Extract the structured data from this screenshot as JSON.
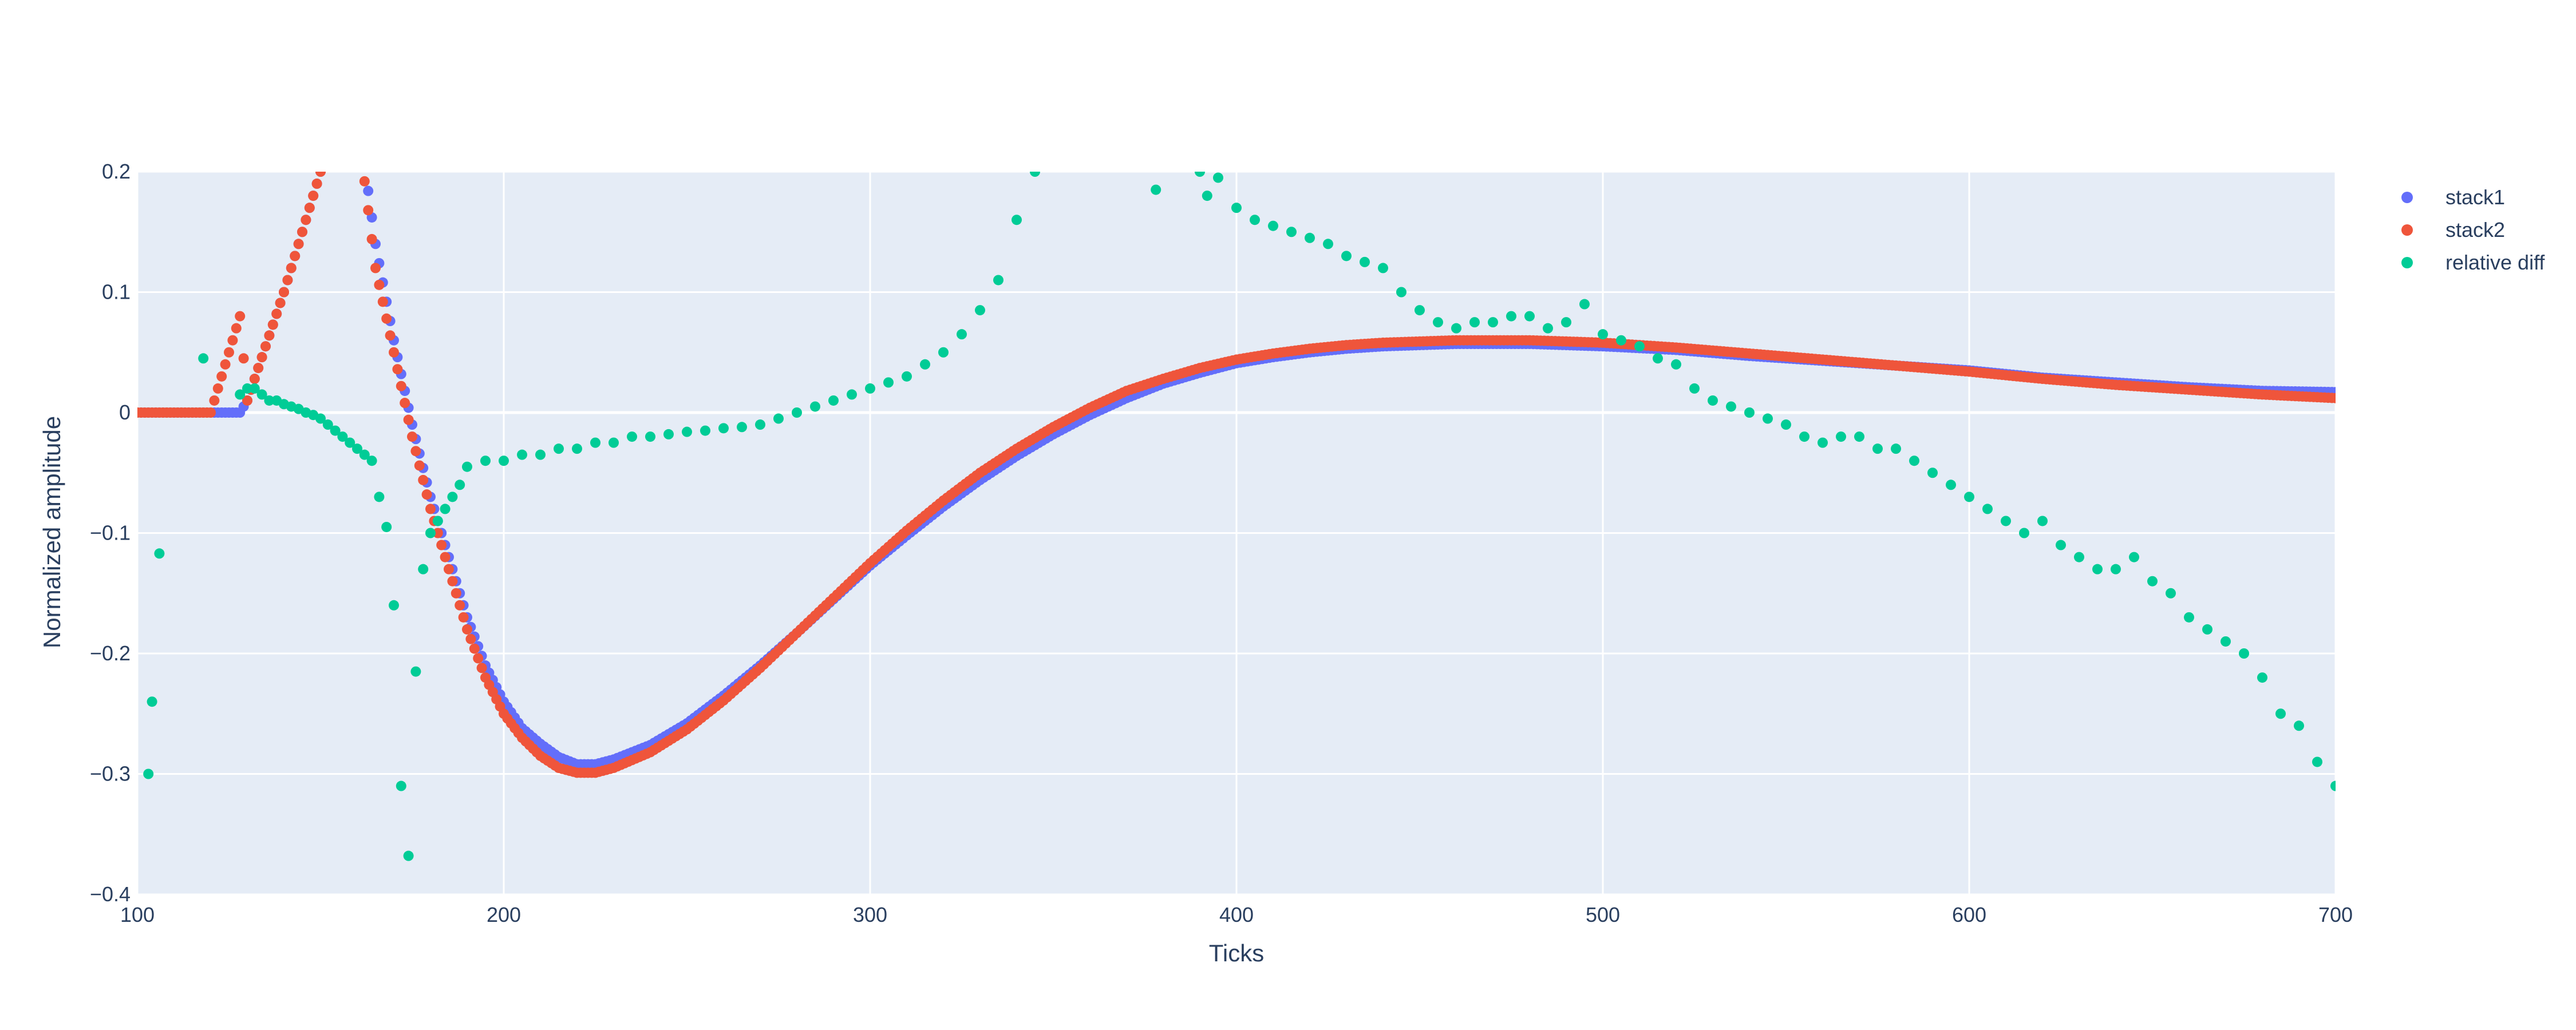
{
  "chart_data": {
    "type": "scatter",
    "title": "",
    "xlabel": "Ticks",
    "ylabel": "Normalized amplitude",
    "xlim": [
      100,
      700
    ],
    "ylim": [
      -0.4,
      0.2
    ],
    "x_ticks": [
      100,
      200,
      300,
      400,
      500,
      600,
      700
    ],
    "y_ticks": [
      -0.4,
      -0.3,
      -0.2,
      -0.1,
      0,
      0.1,
      0.2
    ],
    "x_tick_labels": [
      "100",
      "200",
      "300",
      "400",
      "500",
      "600",
      "700"
    ],
    "y_tick_labels": [
      "−0.4",
      "−0.3",
      "−0.2",
      "−0.1",
      "0",
      "0.1",
      "0.2"
    ],
    "grid": true,
    "legend_position": "top-right",
    "colors": {
      "plot_bg": "#e5ecf6",
      "grid": "#ffffff",
      "text": "#2a3f5f"
    },
    "series": [
      {
        "name": "stack1",
        "color": "#636efa",
        "x": [
          100,
          110,
          120,
          128,
          130,
          140,
          150,
          160,
          165,
          170,
          175,
          180,
          185,
          190,
          195,
          200,
          205,
          210,
          215,
          220,
          225,
          230,
          240,
          250,
          260,
          270,
          280,
          290,
          300,
          310,
          320,
          330,
          340,
          350,
          360,
          370,
          380,
          390,
          400,
          410,
          420,
          430,
          440,
          450,
          460,
          470,
          480,
          490,
          500,
          520,
          540,
          560,
          580,
          600,
          620,
          640,
          660,
          680,
          700
        ],
        "y": [
          0,
          0,
          0,
          0,
          0.01,
          0.1,
          0.2,
          0.25,
          0.14,
          0.06,
          -0.01,
          -0.07,
          -0.12,
          -0.17,
          -0.21,
          -0.24,
          -0.262,
          -0.275,
          -0.286,
          -0.292,
          -0.292,
          -0.288,
          -0.276,
          -0.258,
          -0.235,
          -0.21,
          -0.183,
          -0.155,
          -0.127,
          -0.102,
          -0.078,
          -0.056,
          -0.036,
          -0.018,
          -0.002,
          0.012,
          0.024,
          0.033,
          0.041,
          0.046,
          0.05,
          0.053,
          0.055,
          0.056,
          0.057,
          0.057,
          0.057,
          0.056,
          0.055,
          0.052,
          0.047,
          0.043,
          0.039,
          0.035,
          0.029,
          0.025,
          0.021,
          0.018,
          0.017
        ]
      },
      {
        "name": "stack2",
        "color": "#ef553b",
        "x": [
          100,
          110,
          120,
          128,
          130,
          140,
          150,
          160,
          165,
          170,
          175,
          180,
          185,
          190,
          195,
          200,
          205,
          210,
          215,
          220,
          225,
          230,
          240,
          250,
          260,
          270,
          280,
          290,
          300,
          310,
          320,
          330,
          340,
          350,
          360,
          370,
          380,
          390,
          400,
          410,
          420,
          430,
          440,
          450,
          460,
          470,
          480,
          490,
          500,
          520,
          540,
          560,
          580,
          600,
          620,
          640,
          660,
          680,
          700
        ],
        "y": [
          0,
          0,
          0,
          0.08,
          0.01,
          0.1,
          0.2,
          0.24,
          0.12,
          0.05,
          -0.02,
          -0.08,
          -0.13,
          -0.18,
          -0.22,
          -0.25,
          -0.27,
          -0.285,
          -0.295,
          -0.299,
          -0.299,
          -0.295,
          -0.282,
          -0.263,
          -0.239,
          -0.212,
          -0.183,
          -0.154,
          -0.125,
          -0.098,
          -0.073,
          -0.05,
          -0.03,
          -0.012,
          0.004,
          0.018,
          0.028,
          0.037,
          0.044,
          0.049,
          0.053,
          0.056,
          0.058,
          0.059,
          0.06,
          0.06,
          0.06,
          0.059,
          0.058,
          0.054,
          0.049,
          0.044,
          0.039,
          0.034,
          0.028,
          0.023,
          0.019,
          0.015,
          0.012
        ]
      },
      {
        "name": "relative diff",
        "color": "#00cc96",
        "x": [
          103,
          104,
          106,
          118,
          128,
          130,
          132,
          134,
          136,
          138,
          140,
          142,
          144,
          146,
          148,
          150,
          152,
          154,
          156,
          158,
          160,
          162,
          164,
          166,
          168,
          170,
          172,
          174,
          176,
          178,
          180,
          182,
          184,
          186,
          188,
          190,
          195,
          200,
          205,
          210,
          215,
          220,
          225,
          230,
          235,
          240,
          245,
          250,
          255,
          260,
          265,
          270,
          275,
          280,
          285,
          290,
          295,
          300,
          305,
          310,
          315,
          320,
          325,
          330,
          335,
          340,
          345,
          378,
          390,
          392,
          395,
          400,
          405,
          410,
          415,
          420,
          425,
          430,
          435,
          440,
          445,
          450,
          455,
          460,
          465,
          470,
          475,
          480,
          485,
          490,
          495,
          500,
          505,
          510,
          515,
          520,
          525,
          530,
          535,
          540,
          545,
          550,
          555,
          560,
          565,
          570,
          575,
          580,
          585,
          590,
          595,
          600,
          605,
          610,
          615,
          620,
          625,
          630,
          635,
          640,
          645,
          650,
          655,
          660,
          665,
          670,
          675,
          680,
          685,
          690,
          695,
          700
        ],
        "y": [
          -0.3,
          -0.24,
          -0.117,
          0.045,
          0.015,
          0.02,
          0.02,
          0.015,
          0.01,
          0.01,
          0.007,
          0.005,
          0.003,
          0,
          -0.002,
          -0.005,
          -0.01,
          -0.015,
          -0.02,
          -0.025,
          -0.03,
          -0.035,
          -0.04,
          -0.07,
          -0.095,
          -0.16,
          -0.31,
          -0.368,
          -0.215,
          -0.13,
          -0.1,
          -0.09,
          -0.08,
          -0.07,
          -0.06,
          -0.045,
          -0.04,
          -0.04,
          -0.035,
          -0.035,
          -0.03,
          -0.03,
          -0.025,
          -0.025,
          -0.02,
          -0.02,
          -0.018,
          -0.016,
          -0.015,
          -0.013,
          -0.012,
          -0.01,
          -0.005,
          0,
          0.005,
          0.01,
          0.015,
          0.02,
          0.025,
          0.03,
          0.04,
          0.05,
          0.065,
          0.085,
          0.11,
          0.16,
          0.2,
          0.185,
          0.2,
          0.18,
          0.195,
          0.17,
          0.16,
          0.155,
          0.15,
          0.145,
          0.14,
          0.13,
          0.125,
          0.12,
          0.1,
          0.085,
          0.075,
          0.07,
          0.075,
          0.075,
          0.08,
          0.08,
          0.07,
          0.075,
          0.09,
          0.065,
          0.06,
          0.055,
          0.045,
          0.04,
          0.02,
          0.01,
          0.005,
          0,
          -0.005,
          -0.01,
          -0.02,
          -0.025,
          -0.02,
          -0.02,
          -0.03,
          -0.03,
          -0.04,
          -0.05,
          -0.06,
          -0.07,
          -0.08,
          -0.09,
          -0.1,
          -0.09,
          -0.11,
          -0.12,
          -0.13,
          -0.13,
          -0.12,
          -0.14,
          -0.15,
          -0.17,
          -0.18,
          -0.19,
          -0.2,
          -0.22,
          -0.25,
          -0.26,
          -0.29,
          -0.31
        ]
      }
    ]
  }
}
